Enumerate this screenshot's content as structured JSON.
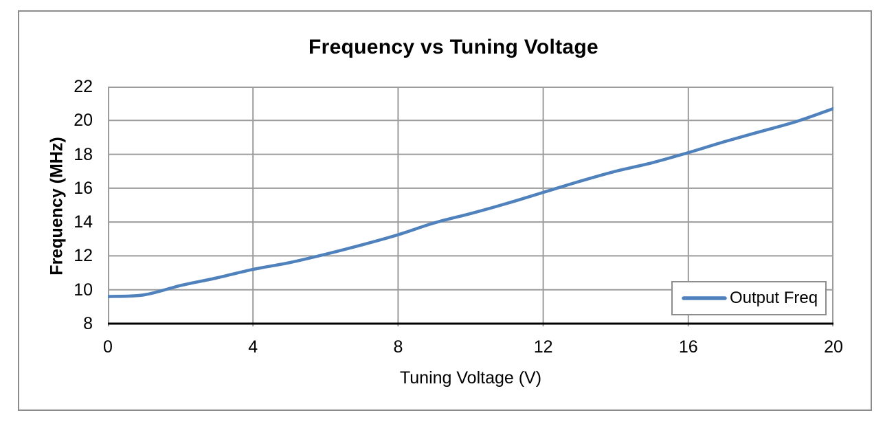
{
  "window": {
    "background": "#FFFFFF"
  },
  "colors": {
    "series_line": "#4F81BD",
    "gridline": "#9C9C9C",
    "axis_line": "#000000",
    "chart_border": "#8C8C8C",
    "legend_border": "#8C8C8C",
    "text": "#000000",
    "plot_background": "#FFFFFF"
  },
  "chart_data": {
    "type": "line",
    "title": "Frequency vs Tuning Voltage",
    "xlabel": "Tuning Voltage (V)",
    "ylabel": "Frequency (MHz)",
    "xlim": [
      0,
      20
    ],
    "ylim": [
      8,
      22
    ],
    "x_ticks": [
      0,
      4,
      8,
      12,
      16,
      20
    ],
    "y_ticks": [
      8,
      10,
      12,
      14,
      16,
      18,
      20,
      22
    ],
    "grid": true,
    "legend": {
      "position": "inside-bottom-right",
      "entries": [
        "Output Freq"
      ]
    },
    "series": [
      {
        "name": "Output Freq",
        "color": "#4F81BD",
        "x": [
          0,
          1,
          2,
          3,
          4,
          5,
          6,
          7,
          8,
          9,
          10,
          11,
          12,
          13,
          14,
          15,
          16,
          17,
          18,
          19,
          20
        ],
        "values": [
          9.6,
          9.7,
          10.25,
          10.7,
          11.2,
          11.6,
          12.1,
          12.65,
          13.25,
          13.95,
          14.5,
          15.1,
          15.75,
          16.4,
          17.0,
          17.5,
          18.1,
          18.75,
          19.35,
          19.95,
          20.7
        ]
      }
    ]
  }
}
